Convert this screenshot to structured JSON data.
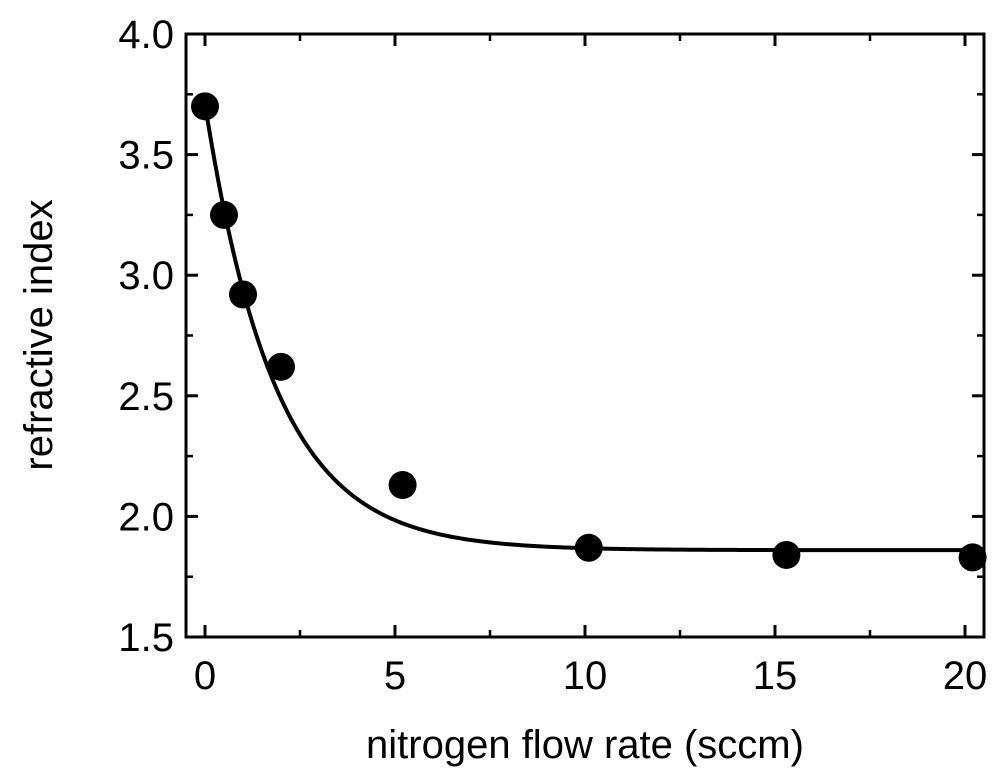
{
  "chart_data": {
    "type": "scatter",
    "title": "",
    "xlabel": "nitrogen flow rate (sccm)",
    "ylabel": "refractive index",
    "xlim": [
      -0.5,
      20.5
    ],
    "ylim": [
      1.5,
      4.0
    ],
    "xticks": [
      0,
      5,
      10,
      15,
      20
    ],
    "xtick_labels": [
      "0",
      "5",
      "10",
      "15",
      "20"
    ],
    "yticks": [
      1.5,
      2.0,
      2.5,
      3.0,
      3.5,
      4.0
    ],
    "ytick_labels": [
      "1.5",
      "2.0",
      "2.5",
      "3.0",
      "3.5",
      "4.0"
    ],
    "grid": false,
    "legend": false,
    "series": [
      {
        "kind": "points",
        "x": [
          0,
          0.5,
          1,
          2,
          5.2,
          10.1,
          15.3,
          20.2
        ],
        "y": [
          3.7,
          3.25,
          2.92,
          2.62,
          2.13,
          1.87,
          1.84,
          1.83
        ]
      },
      {
        "kind": "fit-line",
        "model": "exponential decay",
        "params": {
          "y0": 1.86,
          "A": 1.85,
          "t": 1.85
        }
      }
    ],
    "colors": {
      "marker": "#000000",
      "line": "#000000",
      "axes": "#000000"
    }
  }
}
